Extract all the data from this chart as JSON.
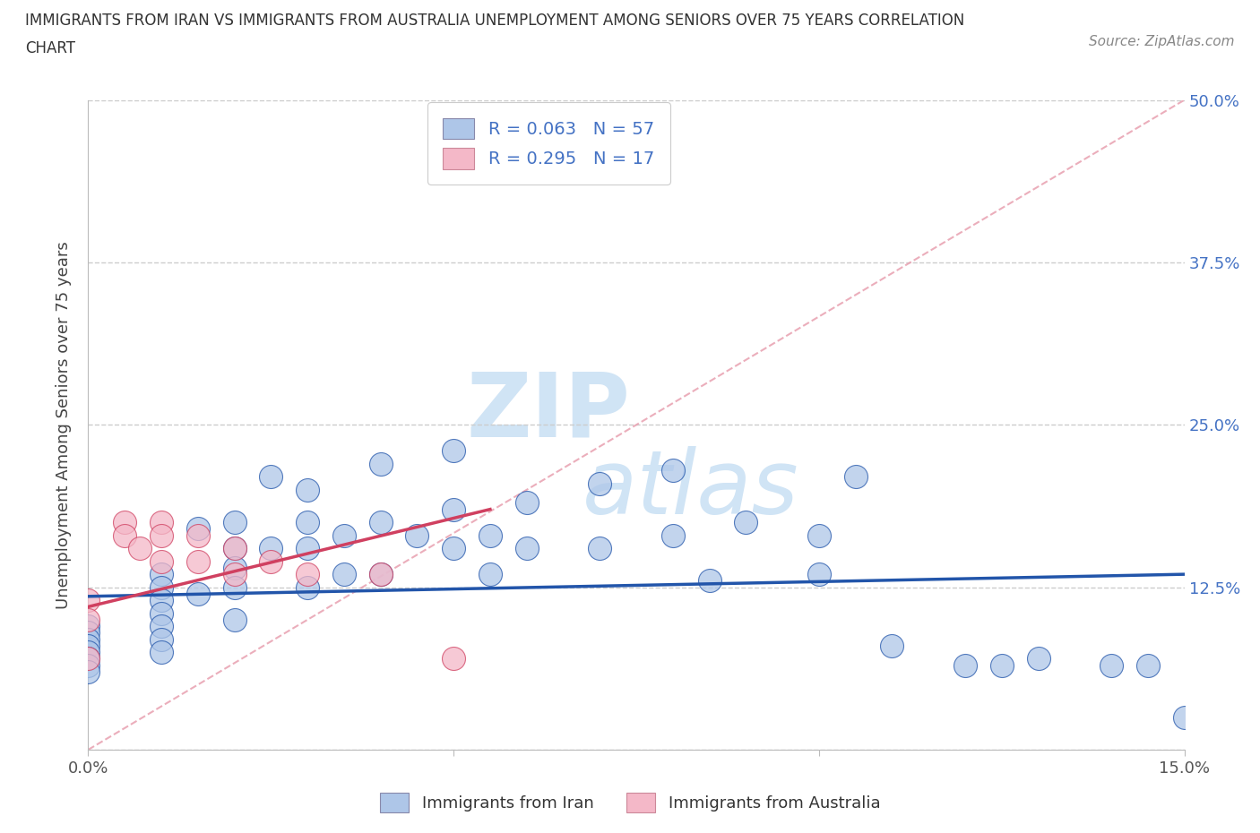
{
  "title_line1": "IMMIGRANTS FROM IRAN VS IMMIGRANTS FROM AUSTRALIA UNEMPLOYMENT AMONG SENIORS OVER 75 YEARS CORRELATION",
  "title_line2": "CHART",
  "source_text": "Source: ZipAtlas.com",
  "ylabel": "Unemployment Among Seniors over 75 years",
  "legend_iran": "Immigrants from Iran",
  "legend_australia": "Immigrants from Australia",
  "iran_R": "0.063",
  "iran_N": "57",
  "australia_R": "0.295",
  "australia_N": "17",
  "xlim": [
    0.0,
    0.15
  ],
  "ylim": [
    0.0,
    0.5
  ],
  "color_iran": "#aec6e8",
  "color_australia": "#f4b8c8",
  "color_iran_line": "#2255aa",
  "color_australia_line": "#d04060",
  "color_diag": "#e0a0b0",
  "background_color": "#ffffff",
  "grid_color": "#cccccc",
  "iran_x": [
    0.0,
    0.0,
    0.0,
    0.0,
    0.0,
    0.0,
    0.0,
    0.0,
    0.01,
    0.01,
    0.01,
    0.01,
    0.01,
    0.01,
    0.01,
    0.015,
    0.015,
    0.02,
    0.02,
    0.02,
    0.02,
    0.02,
    0.025,
    0.025,
    0.03,
    0.03,
    0.03,
    0.03,
    0.035,
    0.035,
    0.04,
    0.04,
    0.04,
    0.045,
    0.05,
    0.05,
    0.05,
    0.055,
    0.055,
    0.06,
    0.06,
    0.07,
    0.07,
    0.08,
    0.08,
    0.085,
    0.09,
    0.1,
    0.1,
    0.105,
    0.11,
    0.12,
    0.125,
    0.13,
    0.14,
    0.145,
    0.15
  ],
  "iran_y": [
    0.095,
    0.09,
    0.085,
    0.08,
    0.075,
    0.07,
    0.065,
    0.06,
    0.135,
    0.125,
    0.115,
    0.105,
    0.095,
    0.085,
    0.075,
    0.17,
    0.12,
    0.175,
    0.155,
    0.14,
    0.125,
    0.1,
    0.21,
    0.155,
    0.2,
    0.175,
    0.155,
    0.125,
    0.165,
    0.135,
    0.22,
    0.175,
    0.135,
    0.165,
    0.23,
    0.185,
    0.155,
    0.165,
    0.135,
    0.19,
    0.155,
    0.205,
    0.155,
    0.215,
    0.165,
    0.13,
    0.175,
    0.165,
    0.135,
    0.21,
    0.08,
    0.065,
    0.065,
    0.07,
    0.065,
    0.065,
    0.025
  ],
  "australia_x": [
    0.0,
    0.0,
    0.0,
    0.005,
    0.005,
    0.007,
    0.01,
    0.01,
    0.01,
    0.015,
    0.015,
    0.02,
    0.02,
    0.025,
    0.03,
    0.04,
    0.05
  ],
  "australia_y": [
    0.115,
    0.1,
    0.07,
    0.175,
    0.165,
    0.155,
    0.175,
    0.165,
    0.145,
    0.165,
    0.145,
    0.155,
    0.135,
    0.145,
    0.135,
    0.135,
    0.07
  ],
  "iran_tline_x": [
    0.0,
    0.15
  ],
  "iran_tline_y": [
    0.118,
    0.135
  ],
  "aus_tline_x": [
    0.0,
    0.055
  ],
  "aus_tline_y": [
    0.11,
    0.185
  ],
  "watermark_zip_color": "#d0e4f5",
  "watermark_atlas_color": "#d0e4f5"
}
